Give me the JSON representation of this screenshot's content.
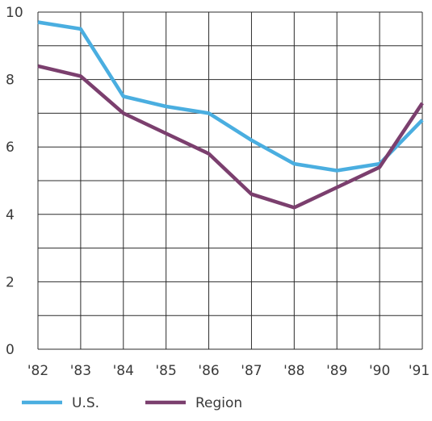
{
  "chart_data": {
    "type": "line",
    "title": "",
    "xlabel": "",
    "ylabel": "",
    "categories": [
      "'82",
      "'83",
      "'84",
      "'85",
      "'86",
      "'87",
      "'88",
      "'89",
      "'90",
      "'91"
    ],
    "ylim": [
      0,
      10
    ],
    "yticks": [
      0,
      2,
      4,
      6,
      8,
      10
    ],
    "grid": true,
    "legend_position": "bottom-left",
    "series": [
      {
        "name": "U.S.",
        "color": "#4aaee0",
        "values": [
          9.7,
          9.5,
          7.5,
          7.2,
          7.0,
          6.2,
          5.5,
          5.3,
          5.5,
          6.8
        ]
      },
      {
        "name": "Region",
        "color": "#7b3f6e",
        "values": [
          8.4,
          8.1,
          7.0,
          6.4,
          5.8,
          4.6,
          4.2,
          4.8,
          5.4,
          7.3
        ]
      }
    ],
    "grid_color": "#2b2b2b"
  }
}
